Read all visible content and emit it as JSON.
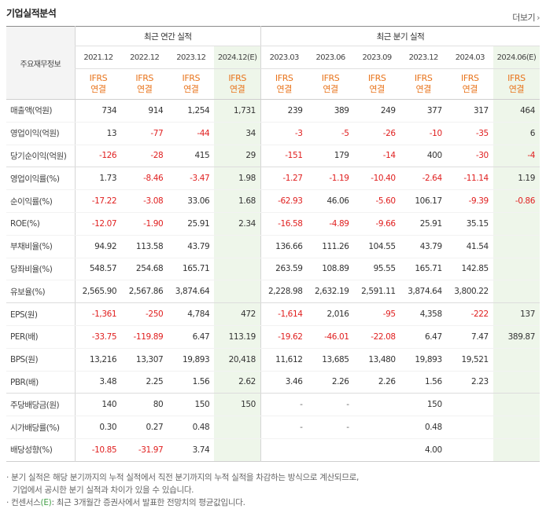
{
  "header": {
    "title": "기업실적분석",
    "more_label": "더보기"
  },
  "columns": {
    "label_head": "주요재무정보",
    "annual_group": "최근 연간 실적",
    "quarter_group": "최근 분기 실적",
    "annual_periods": [
      "2021.12",
      "2022.12",
      "2023.12",
      "2024.12(E)"
    ],
    "quarter_periods": [
      "2023.03",
      "2023.06",
      "2023.09",
      "2023.12",
      "2024.03",
      "2024.06(E)"
    ],
    "ifrs_line1": "IFRS",
    "ifrs_line2": "연결"
  },
  "estimate_columns": [
    3,
    9
  ],
  "rows": [
    {
      "label": "매출액(억원)",
      "values": [
        "734",
        "914",
        "1,254",
        "1,731",
        "239",
        "389",
        "249",
        "377",
        "317",
        "464"
      ]
    },
    {
      "label": "영업이익(억원)",
      "values": [
        "13",
        "-77",
        "-44",
        "34",
        "-3",
        "-5",
        "-26",
        "-10",
        "-35",
        "6"
      ]
    },
    {
      "label": "당기순이익(억원)",
      "values": [
        "-126",
        "-28",
        "415",
        "29",
        "-151",
        "179",
        "-14",
        "400",
        "-30",
        "-4"
      ]
    },
    {
      "label": "영업이익률(%)",
      "values": [
        "1.73",
        "-8.46",
        "-3.47",
        "1.98",
        "-1.27",
        "-1.19",
        "-10.40",
        "-2.64",
        "-11.14",
        "1.19"
      ]
    },
    {
      "label": "순이익률(%)",
      "values": [
        "-17.22",
        "-3.08",
        "33.06",
        "1.68",
        "-62.93",
        "46.06",
        "-5.60",
        "106.17",
        "-9.39",
        "-0.86"
      ]
    },
    {
      "label": "ROE(%)",
      "values": [
        "-12.07",
        "-1.90",
        "25.91",
        "2.34",
        "-16.58",
        "-4.89",
        "-9.66",
        "25.91",
        "35.15",
        ""
      ]
    },
    {
      "label": "부채비율(%)",
      "values": [
        "94.92",
        "113.58",
        "43.79",
        "",
        "136.66",
        "111.26",
        "104.55",
        "43.79",
        "41.54",
        ""
      ]
    },
    {
      "label": "당좌비율(%)",
      "values": [
        "548.57",
        "254.68",
        "165.71",
        "",
        "263.59",
        "108.89",
        "95.55",
        "165.71",
        "142.85",
        ""
      ]
    },
    {
      "label": "유보율(%)",
      "values": [
        "2,565.90",
        "2,567.86",
        "3,874.64",
        "",
        "2,228.98",
        "2,632.19",
        "2,591.11",
        "3,874.64",
        "3,800.22",
        ""
      ]
    },
    {
      "label": "EPS(원)",
      "values": [
        "-1,361",
        "-250",
        "4,784",
        "472",
        "-1,614",
        "2,016",
        "-95",
        "4,358",
        "-222",
        "137"
      ]
    },
    {
      "label": "PER(배)",
      "values": [
        "-33.75",
        "-119.89",
        "6.47",
        "113.19",
        "-19.62",
        "-46.01",
        "-22.08",
        "6.47",
        "7.47",
        "389.87"
      ]
    },
    {
      "label": "BPS(원)",
      "values": [
        "13,216",
        "13,307",
        "19,893",
        "20,418",
        "11,612",
        "13,685",
        "13,480",
        "19,893",
        "19,521",
        ""
      ]
    },
    {
      "label": "PBR(배)",
      "values": [
        "3.48",
        "2.25",
        "1.56",
        "2.62",
        "3.46",
        "2.26",
        "2.26",
        "1.56",
        "2.23",
        ""
      ]
    },
    {
      "label": "주당배당금(원)",
      "values": [
        "140",
        "80",
        "150",
        "150",
        "-",
        "-",
        "",
        "150",
        "",
        ""
      ]
    },
    {
      "label": "시가배당률(%)",
      "values": [
        "0.30",
        "0.27",
        "0.48",
        "",
        "-",
        "-",
        "",
        "0.48",
        "",
        ""
      ]
    },
    {
      "label": "배당성향(%)",
      "values": [
        "-10.85",
        "-31.97",
        "3.74",
        "",
        "",
        "",
        "",
        "4.00",
        "",
        ""
      ]
    }
  ],
  "group_ends": [
    2,
    8,
    12
  ],
  "notes": {
    "line1": "분기 실적은 해당 분기까지의 누적 실적에서 직전 분기까지의 누적 실적을 차감하는 방식으로 계산되므로,",
    "line2": "기업에서 공시한 분기 실적과 차이가 있을 수 있습니다.",
    "line3_prefix": "컨센서스",
    "line3_em": "(E)",
    "line3_suffix": ": 최근 3개월간 증권사에서 발표한 전망치의 평균값입니다."
  },
  "colors": {
    "negative": "#e02020",
    "ifrs": "#e8741c",
    "estimate_bg": "#eef6ea",
    "consensus_mark": "#43a047"
  }
}
